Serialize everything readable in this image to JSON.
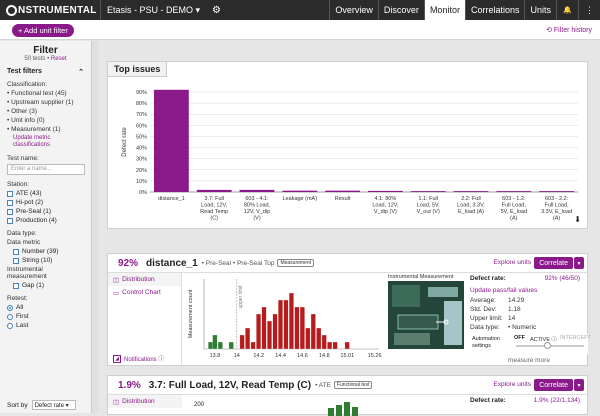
{
  "app": {
    "logo_text": "NSTRUMENTAL",
    "project": "Etasis - PSU - DEMO ▾",
    "gear_icon": "⚙"
  },
  "nav": {
    "tabs": [
      "Overview",
      "Discover",
      "Monitor",
      "Correlations",
      "Units"
    ],
    "active": "Monitor",
    "bell_icon": "🔔",
    "menu_icon": "⋮"
  },
  "subbar": {
    "add_filter": "+ Add unit filter",
    "history": "⟲ Filter history"
  },
  "sidebar": {
    "title": "Filter",
    "count": "50 tests",
    "reset": "Reset",
    "section": "Test filters",
    "collapse_icon": "⌃",
    "classification_label": "Classification:",
    "classification": [
      "• Functional test (45)",
      "• Upstream supplier (1)",
      "• Other (3)",
      "• Unit info (0)",
      "• Measurement (1)"
    ],
    "update_link": "Update metric classifications",
    "testname_label": "Test name:",
    "testname_placeholder": "Enter a name...",
    "station_label": "Station:",
    "stations": [
      "ATE (43)",
      "Hi-pot (2)",
      "Pre-Seal (1)",
      "Production (4)"
    ],
    "datatype_label": "Data type:",
    "datametric_label": "Data metric",
    "datametric": [
      "Number (39)",
      "String (10)"
    ],
    "instr_label": "Instrumental measurement",
    "instr": [
      "Gap (1)"
    ],
    "retest_label": "Retest:",
    "retest": [
      "All",
      "First",
      "Last"
    ],
    "sortby_label": "Sort by",
    "sortby_value": "Defect rate ▾"
  },
  "top_issues": {
    "title": "Top issues",
    "download_icon": "⬇",
    "chart_data": {
      "type": "bar",
      "ylabel": "Defect rate",
      "ylim": [
        0,
        90
      ],
      "yticks": [
        "0%",
        "10%",
        "20%",
        "30%",
        "40%",
        "50%",
        "60%",
        "70%",
        "80%",
        "90%"
      ],
      "categories": [
        [
          "distance_1"
        ],
        [
          "3.7: Full",
          "Load, 12V,",
          "Read Temp",
          "(C)"
        ],
        [
          "603 - 4.1:",
          "80% Load,",
          "12V, V_dip",
          "(V)"
        ],
        [
          "Leakage (mA)"
        ],
        [
          "Result"
        ],
        [
          "4.1: 80%",
          "Load, 12V,",
          "V_dip (V)"
        ],
        [
          "1.1: Full",
          "Load, 5V,",
          "V_out (V)"
        ],
        [
          "2.2: Full",
          "Load, 3.3V,",
          "E_load (A)"
        ],
        [
          "603 - 1.2:",
          "Full Load,",
          "5V, E_load",
          "(A)"
        ],
        [
          "603 - 2.2:",
          "Full Load,",
          "3.3V, E_load",
          "(A)"
        ]
      ],
      "values": [
        92,
        1.9,
        1.9,
        1.2,
        1.2,
        1.0,
        0.8,
        0.8,
        0.8,
        0.8
      ],
      "color": "#8a1a8a"
    }
  },
  "card1": {
    "pct": "92%",
    "name": "distance_1",
    "tags": "• Pre-Seal • Pre-Seal Top",
    "badge": "Measurement",
    "explore": "Explore units",
    "correlate": "Correlate",
    "dropdown": "▾",
    "tab_dist": "Distribution",
    "tab_control": "Control Chart",
    "notifications": "Notifications ⓘ",
    "meas_label": "Instrumental Measurement",
    "defect_label": "Defect rate:",
    "defect_value": "92% (46/50)",
    "update": "Update pass/fail values",
    "stats": [
      [
        "Average:",
        "14.29"
      ],
      [
        "Std. Dev:",
        "1.18"
      ],
      [
        "Upper limit:",
        "14"
      ],
      [
        "Data type:",
        "• Numeric"
      ]
    ],
    "auto_label": "Automation settings",
    "auto_opts": [
      "OFF",
      "ACTIVE ⓘ",
      "INTERCEPT"
    ],
    "measure_more": "measure more",
    "hist": {
      "type": "bar",
      "ylabel": "Measurement count",
      "upper_limit_label": "upper limit",
      "upper_limit": 14,
      "xticks": [
        "13.8",
        "14",
        "14.2",
        "14.4",
        "14.6",
        "14.8",
        "15.01",
        "15.26"
      ],
      "xlim": [
        13.7,
        15.3
      ],
      "bins": [
        13.76,
        13.8,
        13.85,
        13.95,
        14.05,
        14.1,
        14.15,
        14.2,
        14.25,
        14.3,
        14.35,
        14.4,
        14.45,
        14.5,
        14.55,
        14.6,
        14.65,
        14.7,
        14.75,
        14.8,
        14.85,
        14.9,
        15.01
      ],
      "counts": [
        1,
        2,
        1,
        1,
        2,
        3,
        1,
        5,
        6,
        4,
        5,
        7,
        7,
        8,
        6,
        6,
        3,
        5,
        3,
        2,
        1,
        1,
        1
      ],
      "pass_color": "#2e7d32",
      "fail_color": "#b71c1c"
    }
  },
  "card2": {
    "pct": "1.9%",
    "name": "3.7: Full Load, 12V, Read Temp (C)",
    "tags": "• ATE",
    "badge": "Functional test",
    "explore": "Explore units",
    "correlate": "Correlate",
    "dropdown": "▾",
    "tab_dist": "Distribution",
    "ytick": "200",
    "defect_label": "Defect rate:",
    "defect_value": "1.9% (22/1,134)"
  }
}
